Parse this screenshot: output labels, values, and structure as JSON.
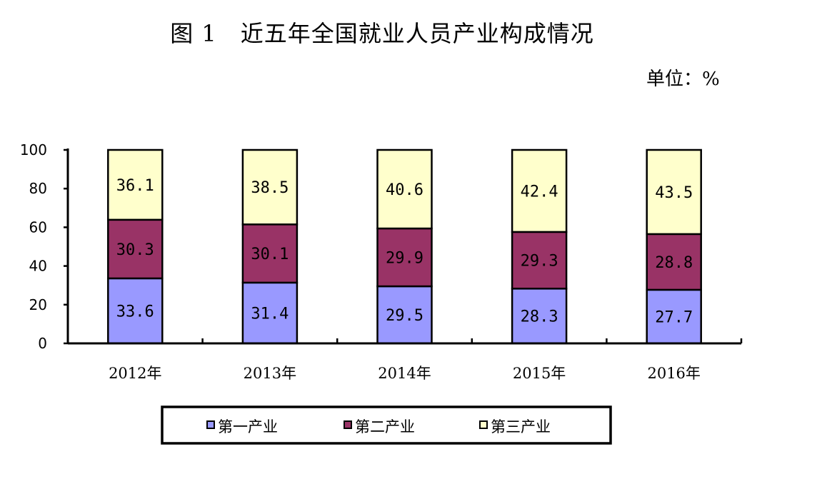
{
  "figure": {
    "title": "图 1　近五年全国就业人员产业构成情况",
    "unit": "单位：%"
  },
  "chart_data": {
    "type": "bar",
    "stacked": true,
    "categories": [
      "2012年",
      "2013年",
      "2014年",
      "2015年",
      "2016年"
    ],
    "series": [
      {
        "name": "第一产业",
        "color": "#9999FF",
        "values": [
          33.6,
          31.4,
          29.5,
          28.3,
          27.7
        ]
      },
      {
        "name": "第二产业",
        "color": "#993366",
        "values": [
          30.3,
          30.1,
          29.9,
          29.3,
          28.8
        ]
      },
      {
        "name": "第三产业",
        "color": "#FFFFCC",
        "values": [
          36.1,
          38.5,
          40.6,
          42.4,
          43.5
        ]
      }
    ],
    "ylim": [
      0,
      100
    ],
    "yticks": [
      "0",
      "20",
      "40",
      "60",
      "80",
      "100"
    ],
    "grid": false,
    "legend_position": "bottom"
  }
}
